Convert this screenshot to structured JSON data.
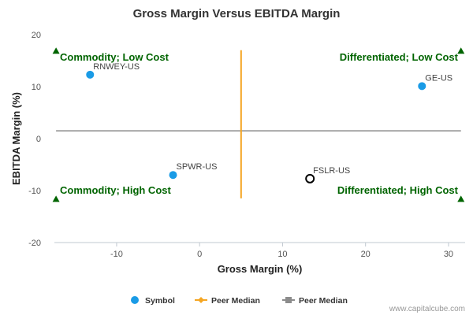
{
  "chart_data": {
    "type": "scatter",
    "title": "Gross Margin Versus EBITDA Margin",
    "xlabel": "Gross Margin (%)",
    "ylabel": "EBITDA Margin (%)",
    "xlim": [
      -17.5,
      32
    ],
    "ylim": [
      -20,
      20
    ],
    "xticks": [
      -10,
      0,
      10,
      20,
      30
    ],
    "yticks": [
      20,
      10,
      0,
      -10,
      -20
    ],
    "grid": false,
    "points": [
      {
        "label": "RNWEY-US",
        "x": -13.2,
        "y": 12.3,
        "style": "filled"
      },
      {
        "label": "GE-US",
        "x": 26.8,
        "y": 10.1,
        "style": "filled"
      },
      {
        "label": "SPWR-US",
        "x": -3.2,
        "y": -7.0,
        "style": "filled"
      },
      {
        "label": "FSLR-US",
        "x": 13.3,
        "y": -7.7,
        "style": "hollow"
      }
    ],
    "peer_median_x": 5.0,
    "peer_median_y": 1.5,
    "vertical_line_range": [
      -11.5,
      17.0
    ],
    "horizontal_line_range": [
      -17.3,
      31.5
    ],
    "quadrant_labels": [
      {
        "text": "Commodity; Low Cost",
        "position": "top-left"
      },
      {
        "text": "Differentiated; Low Cost",
        "position": "top-right"
      },
      {
        "text": "Commodity; High Cost",
        "position": "bottom-left"
      },
      {
        "text": "Differentiated; High Cost",
        "position": "bottom-right"
      }
    ],
    "legend": {
      "placement": "bottom-center",
      "items": [
        {
          "label": "Symbol",
          "marker": "circle",
          "color": "#1a9be6"
        },
        {
          "label": "Peer Median",
          "marker": "diamond-line",
          "color": "#f5a623"
        },
        {
          "label": "Peer Median",
          "marker": "square-line",
          "color": "#8c8c8c"
        }
      ]
    },
    "colors": {
      "point": "#1a9be6",
      "vertical_median": "#f5a623",
      "horizontal_median": "#8c8c8c",
      "quadrant_text": "#006400",
      "triangle": "#006400"
    }
  },
  "footer": {
    "credit": "www.capitalcube.com"
  }
}
